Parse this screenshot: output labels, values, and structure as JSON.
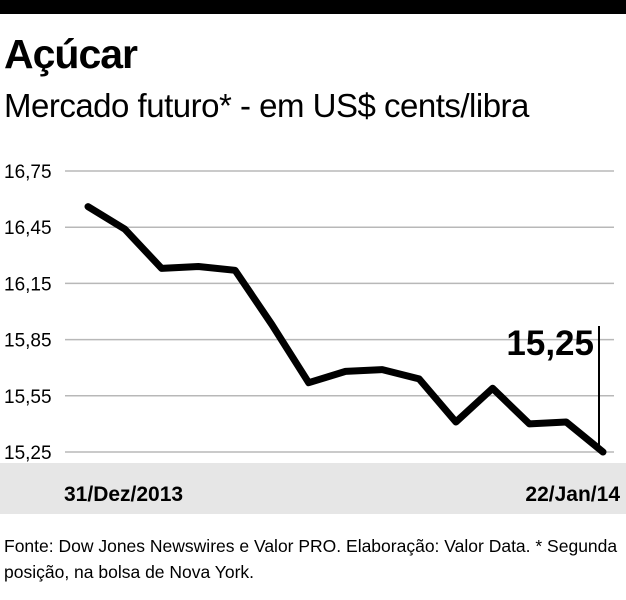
{
  "chart_data": {
    "type": "line",
    "title": "Açúcar",
    "subtitle": "Mercado futuro* - em US$ cents/libra",
    "yticks": [
      "16,75",
      "16,45",
      "16,15",
      "15,85",
      "15,55",
      "15,25"
    ],
    "ylim": [
      15.25,
      16.75
    ],
    "x_start_label": "31/Dez/2013",
    "x_end_label": "22/Jan/14",
    "y": [
      16.56,
      16.44,
      16.23,
      16.24,
      16.22,
      15.93,
      15.62,
      15.68,
      15.69,
      15.64,
      15.41,
      15.59,
      15.4,
      15.41,
      15.25
    ],
    "callout": "15,25",
    "grid": true,
    "colors": {
      "line": "#000000",
      "grid": "#b8b8b8",
      "band": "#e6e6e6",
      "top_bar": "#000000"
    }
  },
  "source_note": "Fonte: Dow Jones Newswires e Valor PRO. Elaboração: Valor Data. * Segunda posição, na bolsa de Nova York."
}
